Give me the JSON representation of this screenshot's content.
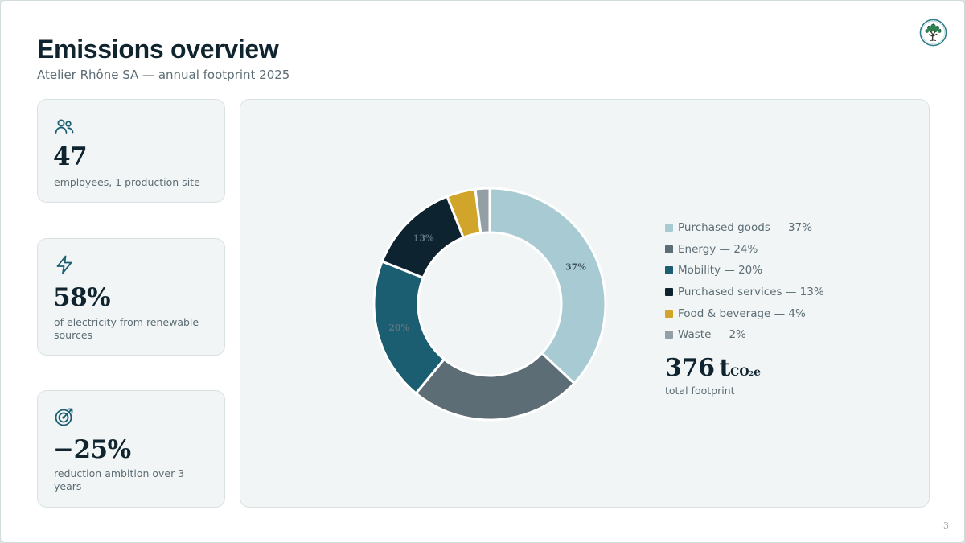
{
  "header": {
    "title": "Emissions overview",
    "subtitle": "Atelier Rhône SA — annual footprint 2025"
  },
  "logo": {
    "icon": "tree-logo-icon"
  },
  "cards": [
    {
      "icon": "people-icon",
      "value": "47",
      "description": "employees, 1 production site"
    },
    {
      "icon": "lightning-icon",
      "value": "58%",
      "description": "of electricity from renewable sources"
    },
    {
      "icon": "target-icon",
      "value": "−25%",
      "description": "reduction ambition over 3 years"
    }
  ],
  "chart_data": {
    "type": "pie",
    "variant": "donut",
    "categories": [
      "Purchased goods",
      "Energy",
      "Mobility",
      "Purchased services",
      "Food & beverage",
      "Waste"
    ],
    "values": [
      37,
      24,
      20,
      13,
      4,
      2
    ],
    "unit": "%",
    "colors": [
      "#a8cad3",
      "#5d6d75",
      "#1b5e72",
      "#0e2330",
      "#d0a52a",
      "#939fa5"
    ],
    "slice_labels": [
      "37%",
      "",
      "20%",
      "13%",
      "",
      ""
    ],
    "legend_labels": [
      "Purchased goods — 37%",
      "Energy — 24%",
      "Mobility — 20%",
      "Purchased services — 13%",
      "Food & beverage — 4%",
      "Waste — 2%"
    ],
    "legend_position": "right"
  },
  "total": {
    "value": "376",
    "unit_prefix": "t",
    "unit_co": "CO",
    "unit_sub": "2",
    "unit_e": "e",
    "label": "total footprint"
  },
  "page_number": "3",
  "colors": {
    "heading": "#10242f",
    "muted": "#5d6d75",
    "accent": "#1b5e72",
    "panel": "#f1f5f5"
  }
}
